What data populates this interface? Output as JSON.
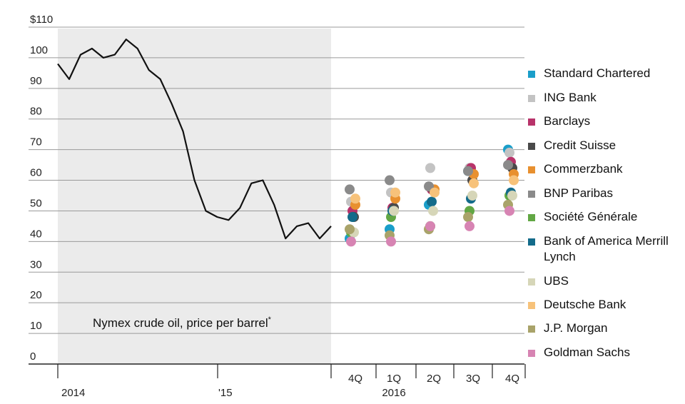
{
  "chart_data": {
    "type": "line",
    "annotation": "Nymex crude oil, price per barrel",
    "annotation_mark": "*",
    "y_ticks": [
      "$110",
      "100",
      "90",
      "80",
      "70",
      "60",
      "50",
      "40",
      "30",
      "20",
      "10",
      "0"
    ],
    "ylim": [
      0,
      110
    ],
    "x_tick_labels": [
      "2014",
      "'15",
      "4Q",
      "1Q",
      "2016",
      "2Q",
      "3Q",
      "4Q"
    ],
    "grid": true,
    "legend_position": "right",
    "line_series": {
      "x": [
        "2013-12",
        "2014-01",
        "2014-02",
        "2014-03",
        "2014-04",
        "2014-05",
        "2014-06",
        "2014-07",
        "2014-08",
        "2014-09",
        "2014-10",
        "2014-11",
        "2014-12",
        "2015-01",
        "2015-02",
        "2015-03",
        "2015-04",
        "2015-05",
        "2015-06",
        "2015-07",
        "2015-08",
        "2015-09",
        "2015-10",
        "2015-11",
        "2015-12"
      ],
      "values": [
        98,
        93,
        101,
        103,
        100,
        101,
        106,
        103,
        96,
        93,
        85,
        76,
        60,
        50,
        48,
        47,
        51,
        59,
        60,
        52,
        41,
        45,
        46,
        41,
        45
      ]
    },
    "series": [
      {
        "name": "Standard Chartered",
        "color": "#1a9ec9",
        "values": [
          41,
          44,
          52,
          63,
          70
        ]
      },
      {
        "name": "ING Bank",
        "color": "#c3c3c3",
        "values": [
          53,
          56,
          64,
          64,
          69
        ]
      },
      {
        "name": "Barclays",
        "color": "#b8336a",
        "values": [
          50,
          51,
          57,
          64,
          66
        ]
      },
      {
        "name": "Credit Suisse",
        "color": "#4a4a4a",
        "values": [
          48,
          51,
          57,
          60,
          64
        ]
      },
      {
        "name": "Commerzbank",
        "color": "#e8902f",
        "values": [
          52,
          54,
          57,
          62,
          62
        ]
      },
      {
        "name": "BNP Paribas",
        "color": "#8a8a8a",
        "values": [
          57,
          60,
          58,
          63,
          65
        ]
      },
      {
        "name": "Société Générale",
        "color": "#62a744",
        "values": [
          43,
          48,
          45,
          50,
          55
        ]
      },
      {
        "name": "Bank of America Merrill Lynch",
        "color": "#136b8a",
        "values": [
          48,
          50,
          53,
          54,
          56
        ]
      },
      {
        "name": "UBS",
        "color": "#d6d6b8",
        "values": [
          43,
          50,
          50,
          55,
          55
        ]
      },
      {
        "name": "Deutsche Bank",
        "color": "#f7c27a",
        "values": [
          54,
          56,
          56,
          59,
          60
        ]
      },
      {
        "name": "J.P. Morgan",
        "color": "#a9a36a",
        "values": [
          44,
          42,
          44,
          48,
          52
        ]
      },
      {
        "name": "Goldman Sachs",
        "color": "#d784b3",
        "values": [
          40,
          40,
          45,
          45,
          50
        ]
      }
    ]
  }
}
